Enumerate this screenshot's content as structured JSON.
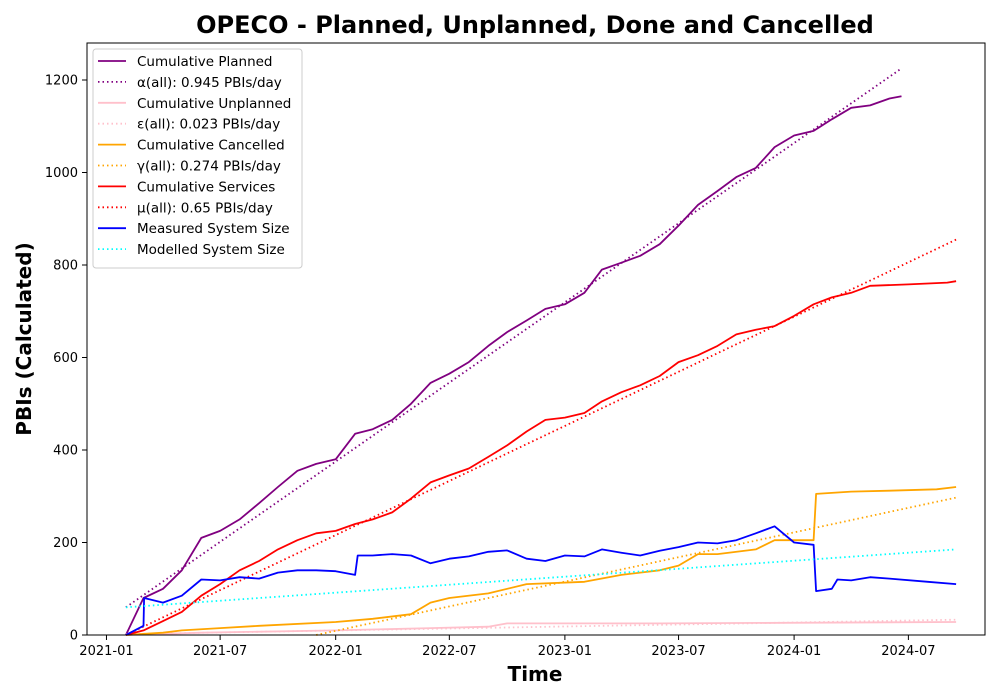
{
  "chart_data": {
    "type": "line",
    "title": "OPECO - Planned, Unplanned, Done  and Cancelled",
    "xlabel": "Time",
    "ylabel": "PBIs (Calculated)",
    "xlim": [
      "2020-12-01",
      "2024-10-31"
    ],
    "ylim": [
      0,
      1280
    ],
    "xticks": [
      "2021-01",
      "2021-07",
      "2022-01",
      "2022-07",
      "2023-01",
      "2023-07",
      "2024-01",
      "2024-07"
    ],
    "yticks": [
      0,
      200,
      400,
      600,
      800,
      1000,
      1200
    ],
    "legend_position": "upper-left",
    "grid": false,
    "series": [
      {
        "name": "Cumulative Planned",
        "color": "#800080",
        "style": "solid",
        "points": [
          [
            "2021-02-01",
            0
          ],
          [
            "2021-03-01",
            80
          ],
          [
            "2021-04-01",
            100
          ],
          [
            "2021-05-01",
            140
          ],
          [
            "2021-06-01",
            210
          ],
          [
            "2021-07-01",
            225
          ],
          [
            "2021-08-01",
            250
          ],
          [
            "2021-09-01",
            285
          ],
          [
            "2021-10-01",
            320
          ],
          [
            "2021-11-01",
            355
          ],
          [
            "2021-12-01",
            370
          ],
          [
            "2022-01-01",
            380
          ],
          [
            "2022-02-01",
            435
          ],
          [
            "2022-03-01",
            445
          ],
          [
            "2022-04-01",
            465
          ],
          [
            "2022-05-01",
            500
          ],
          [
            "2022-06-01",
            545
          ],
          [
            "2022-07-01",
            565
          ],
          [
            "2022-08-01",
            590
          ],
          [
            "2022-09-01",
            625
          ],
          [
            "2022-10-01",
            655
          ],
          [
            "2022-11-01",
            680
          ],
          [
            "2022-12-01",
            705
          ],
          [
            "2023-01-01",
            715
          ],
          [
            "2023-02-01",
            740
          ],
          [
            "2023-03-01",
            790
          ],
          [
            "2023-04-01",
            805
          ],
          [
            "2023-05-01",
            820
          ],
          [
            "2023-06-01",
            845
          ],
          [
            "2023-07-01",
            885
          ],
          [
            "2023-08-01",
            930
          ],
          [
            "2023-09-01",
            960
          ],
          [
            "2023-10-01",
            990
          ],
          [
            "2023-11-01",
            1010
          ],
          [
            "2023-12-01",
            1055
          ],
          [
            "2024-01-01",
            1080
          ],
          [
            "2024-02-01",
            1090
          ],
          [
            "2024-03-01",
            1115
          ],
          [
            "2024-04-01",
            1140
          ],
          [
            "2024-05-01",
            1145
          ],
          [
            "2024-06-01",
            1160
          ],
          [
            "2024-06-20",
            1165
          ]
        ]
      },
      {
        "name": "α(all): 0.945 PBIs/day",
        "color": "#800080",
        "style": "dotted",
        "points": [
          [
            "2021-02-01",
            60
          ],
          [
            "2024-06-20",
            1225
          ]
        ]
      },
      {
        "name": "Cumulative Unplanned",
        "color": "#ffc0cb",
        "style": "solid",
        "points": [
          [
            "2021-02-01",
            0
          ],
          [
            "2021-06-01",
            5
          ],
          [
            "2022-01-01",
            10
          ],
          [
            "2022-06-01",
            15
          ],
          [
            "2022-09-01",
            18
          ],
          [
            "2022-10-01",
            25
          ],
          [
            "2023-06-01",
            25
          ],
          [
            "2024-09-15",
            28
          ]
        ]
      },
      {
        "name": "ε(all): 0.023 PBIs/day",
        "color": "#ffc0cb",
        "style": "dotted",
        "points": [
          [
            "2021-02-01",
            2
          ],
          [
            "2024-09-15",
            33
          ]
        ]
      },
      {
        "name": "Cumulative Cancelled",
        "color": "#ffa500",
        "style": "solid",
        "points": [
          [
            "2021-02-01",
            0
          ],
          [
            "2021-04-01",
            5
          ],
          [
            "2021-05-01",
            10
          ],
          [
            "2021-07-01",
            15
          ],
          [
            "2021-09-01",
            20
          ],
          [
            "2022-01-01",
            28
          ],
          [
            "2022-03-01",
            35
          ],
          [
            "2022-05-01",
            45
          ],
          [
            "2022-06-01",
            70
          ],
          [
            "2022-07-01",
            80
          ],
          [
            "2022-09-01",
            90
          ],
          [
            "2022-11-01",
            110
          ],
          [
            "2023-02-01",
            115
          ],
          [
            "2023-04-01",
            130
          ],
          [
            "2023-06-01",
            140
          ],
          [
            "2023-07-01",
            150
          ],
          [
            "2023-08-01",
            175
          ],
          [
            "2023-09-01",
            175
          ],
          [
            "2023-11-01",
            185
          ],
          [
            "2023-12-01",
            205
          ],
          [
            "2024-02-01",
            205
          ],
          [
            "2024-02-05",
            305
          ],
          [
            "2024-04-01",
            310
          ],
          [
            "2024-06-01",
            312
          ],
          [
            "2024-08-15",
            315
          ],
          [
            "2024-09-15",
            320
          ]
        ]
      },
      {
        "name": "γ(all): 0.274 PBIs/day",
        "color": "#ffa500",
        "style": "dotted",
        "points": [
          [
            "2021-12-01",
            0
          ],
          [
            "2024-09-15",
            297
          ]
        ]
      },
      {
        "name": "Cumulative Services",
        "color": "#ff0000",
        "style": "solid",
        "points": [
          [
            "2021-02-01",
            0
          ],
          [
            "2021-03-01",
            10
          ],
          [
            "2021-04-01",
            30
          ],
          [
            "2021-05-01",
            50
          ],
          [
            "2021-06-01",
            85
          ],
          [
            "2021-07-01",
            110
          ],
          [
            "2021-08-01",
            140
          ],
          [
            "2021-09-01",
            160
          ],
          [
            "2021-10-01",
            185
          ],
          [
            "2021-11-01",
            205
          ],
          [
            "2021-12-01",
            220
          ],
          [
            "2022-01-01",
            225
          ],
          [
            "2022-02-01",
            240
          ],
          [
            "2022-03-01",
            250
          ],
          [
            "2022-04-01",
            265
          ],
          [
            "2022-05-01",
            295
          ],
          [
            "2022-06-01",
            330
          ],
          [
            "2022-07-01",
            345
          ],
          [
            "2022-08-01",
            360
          ],
          [
            "2022-09-01",
            385
          ],
          [
            "2022-10-01",
            410
          ],
          [
            "2022-11-01",
            440
          ],
          [
            "2022-12-01",
            465
          ],
          [
            "2023-01-01",
            470
          ],
          [
            "2023-02-01",
            480
          ],
          [
            "2023-03-01",
            505
          ],
          [
            "2023-04-01",
            525
          ],
          [
            "2023-05-01",
            540
          ],
          [
            "2023-06-01",
            560
          ],
          [
            "2023-07-01",
            590
          ],
          [
            "2023-08-01",
            605
          ],
          [
            "2023-09-01",
            625
          ],
          [
            "2023-10-01",
            650
          ],
          [
            "2023-11-01",
            660
          ],
          [
            "2023-12-01",
            668
          ],
          [
            "2024-01-01",
            690
          ],
          [
            "2024-02-01",
            715
          ],
          [
            "2024-03-01",
            730
          ],
          [
            "2024-04-01",
            740
          ],
          [
            "2024-05-01",
            755
          ],
          [
            "2024-07-01",
            758
          ],
          [
            "2024-09-01",
            762
          ],
          [
            "2024-09-15",
            765
          ]
        ]
      },
      {
        "name": "μ(all): 0.65 PBIs/day",
        "color": "#ff0000",
        "style": "dotted",
        "points": [
          [
            "2021-02-01",
            0
          ],
          [
            "2024-09-15",
            855
          ]
        ]
      },
      {
        "name": "Measured System Size",
        "color": "#0000ff",
        "style": "solid",
        "points": [
          [
            "2021-02-01",
            0
          ],
          [
            "2021-03-01",
            20
          ],
          [
            "2021-03-02",
            80
          ],
          [
            "2021-04-01",
            70
          ],
          [
            "2021-05-01",
            85
          ],
          [
            "2021-06-01",
            120
          ],
          [
            "2021-07-01",
            118
          ],
          [
            "2021-08-01",
            125
          ],
          [
            "2021-09-01",
            122
          ],
          [
            "2021-10-01",
            135
          ],
          [
            "2021-11-01",
            140
          ],
          [
            "2021-12-01",
            140
          ],
          [
            "2022-01-01",
            138
          ],
          [
            "2022-02-01",
            130
          ],
          [
            "2022-02-05",
            172
          ],
          [
            "2022-03-01",
            172
          ],
          [
            "2022-04-01",
            175
          ],
          [
            "2022-05-01",
            172
          ],
          [
            "2022-06-01",
            155
          ],
          [
            "2022-07-01",
            165
          ],
          [
            "2022-08-01",
            170
          ],
          [
            "2022-09-01",
            180
          ],
          [
            "2022-10-01",
            183
          ],
          [
            "2022-11-01",
            165
          ],
          [
            "2022-12-01",
            160
          ],
          [
            "2023-01-01",
            172
          ],
          [
            "2023-02-01",
            170
          ],
          [
            "2023-03-01",
            185
          ],
          [
            "2023-04-01",
            178
          ],
          [
            "2023-05-01",
            172
          ],
          [
            "2023-06-01",
            182
          ],
          [
            "2023-07-01",
            190
          ],
          [
            "2023-08-01",
            200
          ],
          [
            "2023-09-01",
            198
          ],
          [
            "2023-10-01",
            205
          ],
          [
            "2023-11-01",
            220
          ],
          [
            "2023-12-01",
            235
          ],
          [
            "2024-01-01",
            200
          ],
          [
            "2024-02-01",
            195
          ],
          [
            "2024-02-05",
            95
          ],
          [
            "2024-03-01",
            100
          ],
          [
            "2024-03-10",
            120
          ],
          [
            "2024-04-01",
            118
          ],
          [
            "2024-05-01",
            125
          ],
          [
            "2024-06-01",
            122
          ],
          [
            "2024-08-01",
            115
          ],
          [
            "2024-09-15",
            110
          ]
        ]
      },
      {
        "name": "Modelled System Size",
        "color": "#00ffff",
        "style": "dotted",
        "points": [
          [
            "2021-02-01",
            60
          ],
          [
            "2024-09-15",
            185
          ]
        ]
      }
    ]
  }
}
